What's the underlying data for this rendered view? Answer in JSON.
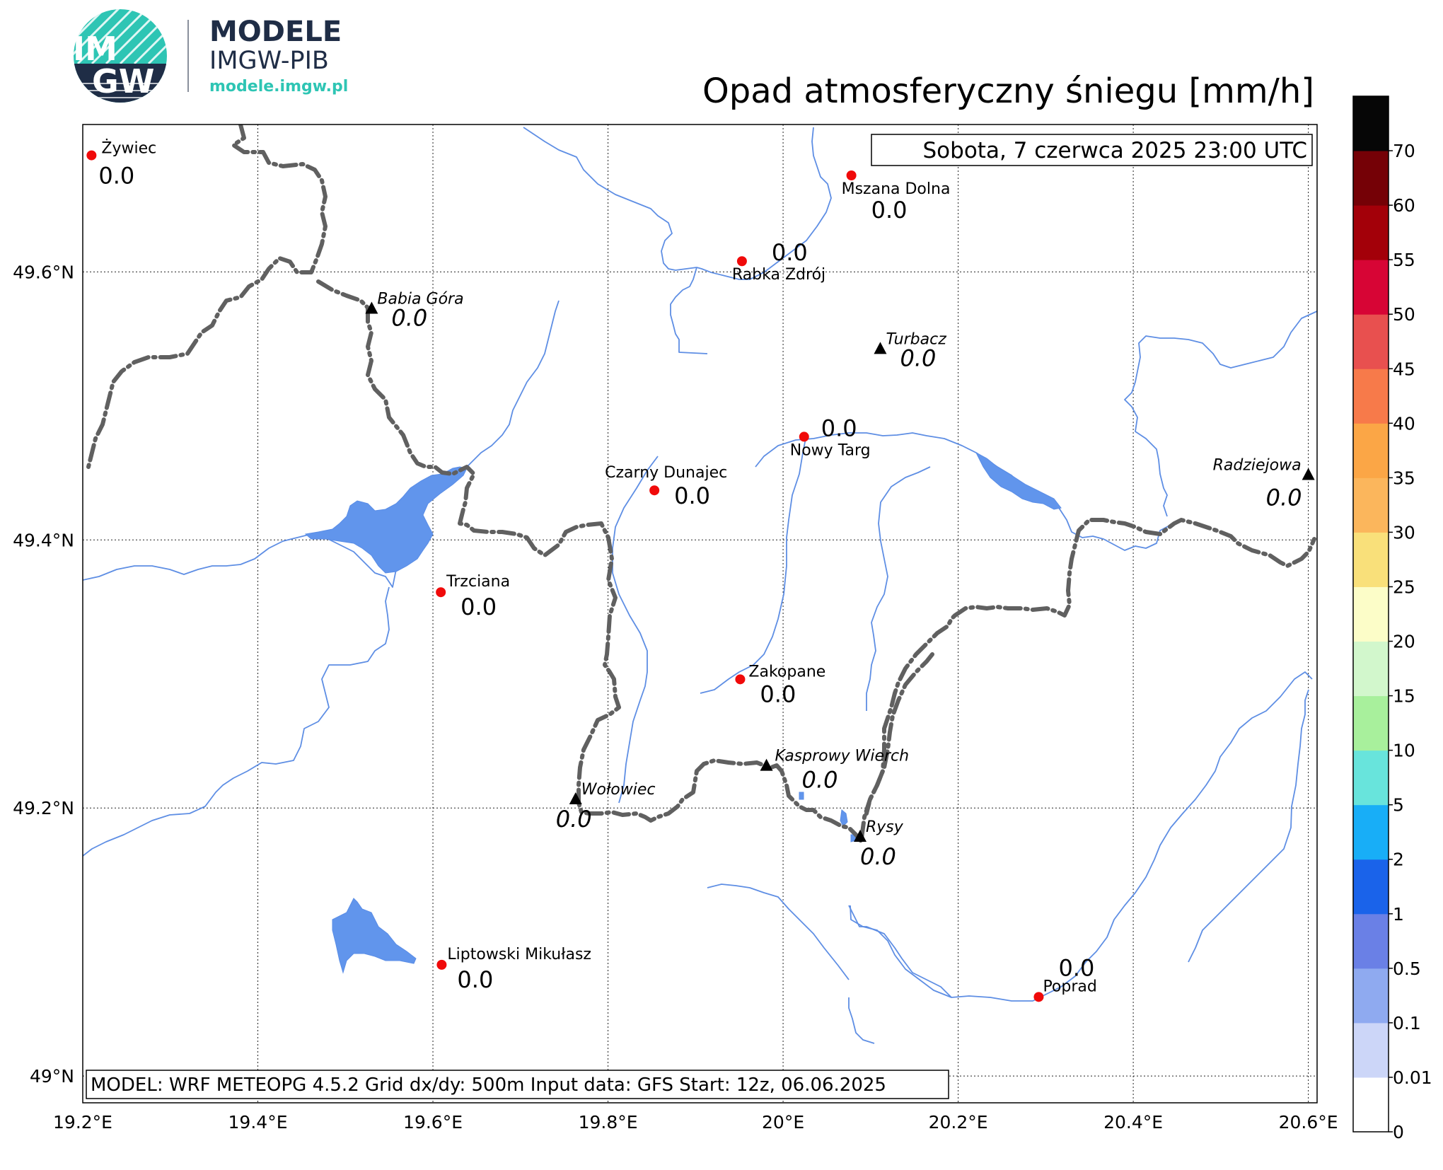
{
  "logo": {
    "badge_line1": "IM",
    "badge_line2": "GW",
    "title": "MODELE",
    "subtitle": "IMGW-PIB",
    "url": "modele.imgw.pl",
    "colors": {
      "navy": "#1f2d46",
      "teal": "#2ec5b4"
    }
  },
  "title": "Opad atmosferyczny śniegu [mm/h]",
  "timestamp": "Sobota, 7 czerwca 2025 23:00 UTC",
  "footer": "MODEL: WRF METEOPG 4.5.2 Grid dx/dy: 500m Input data: GFS Start: 12z, 06.06.2025",
  "axes": {
    "lon_labels": [
      "19.2°E",
      "19.4°E",
      "19.6°E",
      "19.8°E",
      "20°E",
      "20.2°E",
      "20.4°E",
      "20.6°E"
    ],
    "lon_values": [
      19.2,
      19.4,
      19.6,
      19.8,
      20.0,
      20.2,
      20.4,
      20.6
    ],
    "lat_labels": [
      "49°N",
      "49.2°N",
      "49.4°N",
      "49.6°N"
    ],
    "lat_values": [
      49.0,
      49.2,
      49.4,
      49.6
    ],
    "lon_range": [
      19.2,
      20.61
    ],
    "lat_range": [
      48.98,
      49.71
    ],
    "grid": "dotted"
  },
  "colorbar": {
    "labels": [
      "0",
      "0.01",
      "0.1",
      "0.5",
      "1",
      "2",
      "5",
      "10",
      "15",
      "20",
      "25",
      "30",
      "35",
      "40",
      "45",
      "50",
      "55",
      "60",
      "70"
    ],
    "colors": [
      "#ffffff",
      "#ccd6f8",
      "#8faaf0",
      "#6a80e6",
      "#1a63ea",
      "#18aef7",
      "#68e4dc",
      "#a8f09c",
      "#d2f7cc",
      "#fcfdc8",
      "#f9e07a",
      "#fbb65c",
      "#fba646",
      "#f77a4a",
      "#e8504f",
      "#d70535",
      "#a30009",
      "#750106",
      "#060606"
    ]
  },
  "stations": [
    {
      "name": "Żywiec",
      "value": "0.0",
      "lon": 19.21,
      "lat": 49.687
    },
    {
      "name": "Mszana Dolna",
      "value": "0.0",
      "lon": 20.078,
      "lat": 49.672
    },
    {
      "name": "Rabka Zdrój",
      "value": "0.0",
      "lon": 19.953,
      "lat": 49.608
    },
    {
      "name": "Nowy Targ",
      "value": "0.0",
      "lon": 20.024,
      "lat": 49.477
    },
    {
      "name": "Czarny Dunajec",
      "value": "0.0",
      "lon": 19.853,
      "lat": 49.437
    },
    {
      "name": "Trzciana",
      "value": "0.0",
      "lon": 19.609,
      "lat": 49.361
    },
    {
      "name": "Zakopane",
      "value": "0.0",
      "lon": 19.951,
      "lat": 49.296
    },
    {
      "name": "Liptowski Mikułasz",
      "value": "0.0",
      "lon": 19.61,
      "lat": 49.083
    },
    {
      "name": "Poprad",
      "value": "0.0",
      "lon": 20.292,
      "lat": 49.059
    }
  ],
  "peaks": [
    {
      "name": "Babia Góra",
      "value": "0.0",
      "lon": 19.53,
      "lat": 49.573
    },
    {
      "name": "Turbacz",
      "value": "0.0",
      "lon": 20.111,
      "lat": 49.543
    },
    {
      "name": "Radziejowa",
      "value": "0.0",
      "lon": 20.6,
      "lat": 49.449
    },
    {
      "name": "Kasprowy Wierch",
      "value": "0.0",
      "lon": 19.981,
      "lat": 49.232
    },
    {
      "name": "Wołowiec",
      "value": "0.0",
      "lon": 19.763,
      "lat": 49.207
    },
    {
      "name": "Rysy",
      "value": "0.0",
      "lon": 20.088,
      "lat": 49.179
    }
  ]
}
